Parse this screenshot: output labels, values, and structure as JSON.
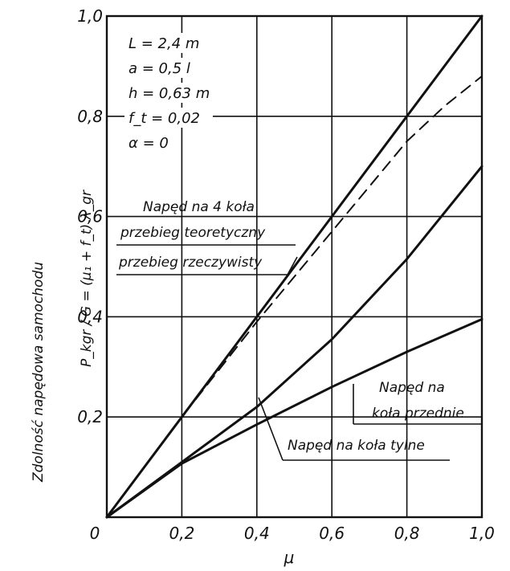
{
  "chart_data": {
    "type": "line",
    "xlabel": "μ",
    "ylabel_text": "Zdolność napędowa samochodu",
    "ylabel_formula": "P_kgr / G = (μ₁ + f_t) λ_gr",
    "xlim": [
      0,
      1.0
    ],
    "ylim": [
      0,
      1.0
    ],
    "grid": true,
    "x_ticks": [
      {
        "value": 0,
        "label": "0"
      },
      {
        "value": 0.2,
        "label": "0,2"
      },
      {
        "value": 0.4,
        "label": "0,4"
      },
      {
        "value": 0.6,
        "label": "0,6"
      },
      {
        "value": 0.8,
        "label": "0,8"
      },
      {
        "value": 1.0,
        "label": "1,0"
      }
    ],
    "y_ticks": [
      {
        "value": 0.2,
        "label": "0,2"
      },
      {
        "value": 0.4,
        "label": "0,4"
      },
      {
        "value": 0.6,
        "label": "0,6"
      },
      {
        "value": 0.8,
        "label": "0,8"
      },
      {
        "value": 1.0,
        "label": "1,0"
      }
    ],
    "parameters": [
      "L = 2,4 m",
      "a = 0,5 l",
      "h = 0,63 m",
      "f_t = 0,02",
      "α = 0"
    ],
    "series": [
      {
        "id": "four-wheel-theoretical",
        "style": "solid",
        "x": [
          0,
          0.2,
          0.4,
          0.6,
          0.8,
          1.0
        ],
        "y": [
          0,
          0.2,
          0.4,
          0.6,
          0.8,
          1.0
        ]
      },
      {
        "id": "four-wheel-actual",
        "style": "dashed",
        "x": [
          0,
          0.2,
          0.4,
          0.5,
          0.6,
          0.7,
          0.8,
          0.9,
          1.0
        ],
        "y": [
          0,
          0.2,
          0.39,
          0.48,
          0.57,
          0.66,
          0.75,
          0.82,
          0.88
        ]
      },
      {
        "id": "front-wheel-drive",
        "style": "solid",
        "x": [
          0,
          0.2,
          0.4,
          0.6,
          0.8,
          1.0
        ],
        "y": [
          0,
          0.11,
          0.22,
          0.355,
          0.515,
          0.7
        ]
      },
      {
        "id": "rear-wheel-drive",
        "style": "solid",
        "x": [
          0,
          0.2,
          0.4,
          0.6,
          0.8,
          1.0
        ],
        "y": [
          0,
          0.107,
          0.185,
          0.26,
          0.33,
          0.395
        ]
      }
    ],
    "annotations": {
      "four_wheel_line1": "Napęd na 4 koła",
      "four_wheel_line2": "przebieg teoretyczny",
      "four_wheel_line3": "przebieg rzeczywisty",
      "front_line1": "Napęd na",
      "front_line2": "koła przednie",
      "rear": "Napęd na koła tylne"
    }
  }
}
